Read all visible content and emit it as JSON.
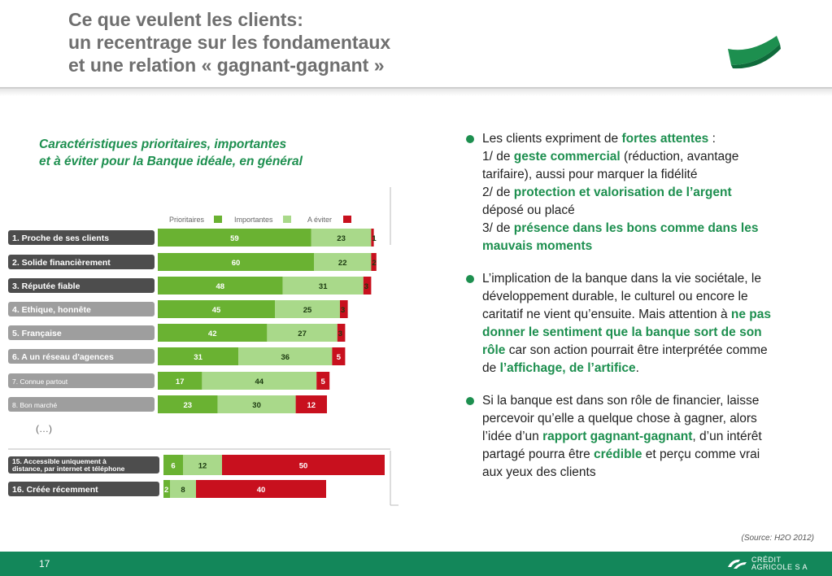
{
  "header": {
    "title_lines": [
      "Ce que veulent les clients:",
      "un recentrage sur les fondamentaux",
      "et une relation « gagnant-gagnant »"
    ]
  },
  "subtitle_lines": [
    "Caractéristiques prioritaires, importantes",
    "et à éviter pour la Banque idéale, en général"
  ],
  "colors": {
    "prioritaires": "#6ab232",
    "importantes": "#a9d98a",
    "a_eviter": "#c8101e",
    "brand_green": "#1d8f4f",
    "footer_green": "#13875a"
  },
  "chart_data": {
    "type": "bar",
    "stacked": true,
    "orientation": "horizontal",
    "legend": [
      "Prioritaires",
      "Importantes",
      "A éviter"
    ],
    "legend_position": "top",
    "categories": [
      "1. Proche de ses clients",
      "2. Solide financièrement",
      "3. Réputée fiable",
      "4. Ethique, honnête",
      "5. Française",
      "6. A un réseau d'agences",
      "7. Connue partout",
      "8. Bon marché",
      "15. Accessible uniquement à distance, par internet et téléphone",
      "16. Créée récemment"
    ],
    "category_lines": [
      [
        "1. Proche de ses clients"
      ],
      [
        "2. Solide financièrement"
      ],
      [
        "3. Réputée fiable"
      ],
      [
        "4. Ethique, honnête"
      ],
      [
        "5. Française"
      ],
      [
        "6. A un réseau d'agences"
      ],
      [
        "7. Connue partout"
      ],
      [
        "8. Bon marché"
      ],
      [
        "15. Accessible uniquement à",
        "distance, par internet et téléphone"
      ],
      [
        "16. Créée récemment"
      ]
    ],
    "series": [
      {
        "name": "Prioritaires",
        "values": [
          59,
          60,
          48,
          45,
          42,
          31,
          17,
          23,
          6,
          2
        ]
      },
      {
        "name": "Importantes",
        "values": [
          23,
          22,
          31,
          25,
          27,
          36,
          44,
          30,
          12,
          8
        ]
      },
      {
        "name": "A éviter",
        "values": [
          1,
          2,
          3,
          3,
          3,
          5,
          5,
          12,
          50,
          40
        ]
      }
    ],
    "gap_label": "(…)"
  },
  "bullets": [
    {
      "lines": [
        [
          {
            "t": "Les clients expriment de "
          },
          {
            "t": "fortes attentes",
            "h": true
          },
          {
            "t": " :"
          }
        ],
        [
          {
            "t": "1/ de "
          },
          {
            "t": "geste commercial",
            "h": true
          },
          {
            "t": " (réduction, avantage"
          }
        ],
        [
          {
            "t": "tarifaire), aussi pour marquer la fidélité"
          }
        ],
        [
          {
            "t": "2/ de "
          },
          {
            "t": "protection et valorisation de l’argent",
            "h": true
          }
        ],
        [
          {
            "t": "déposé ou placé"
          }
        ],
        [
          {
            "t": "3/ de "
          },
          {
            "t": "présence dans les bons comme dans les",
            "h": true
          }
        ],
        [
          {
            "t": "mauvais moments",
            "h": true
          }
        ]
      ]
    },
    {
      "lines": [
        [
          {
            "t": "L’implication de la banque dans la vie sociétale, le"
          }
        ],
        [
          {
            "t": "développement durable, le culturel ou encore le"
          }
        ],
        [
          {
            "t": "caritatif ne vient qu’ensuite. Mais attention à "
          },
          {
            "t": "ne pas",
            "h": true
          }
        ],
        [
          {
            "t": "donner le sentiment que la banque sort de son",
            "h": true
          }
        ],
        [
          {
            "t": "rôle",
            "h": true
          },
          {
            "t": " car son action pourrait être interprétée comme"
          }
        ],
        [
          {
            "t": "de "
          },
          {
            "t": "l’affichage, de l’artifice",
            "h": true
          },
          {
            "t": "."
          }
        ]
      ]
    },
    {
      "lines": [
        [
          {
            "t": "Si la banque est dans son rôle de financier, laisse"
          }
        ],
        [
          {
            "t": "percevoir qu’elle a quelque chose à gagner, alors"
          }
        ],
        [
          {
            "t": "l’idée d’un "
          },
          {
            "t": "rapport gagnant-gagnant",
            "h": true
          },
          {
            "t": ", d’un intérêt"
          }
        ],
        [
          {
            "t": "partagé pourra être "
          },
          {
            "t": "crédible",
            "h": true
          },
          {
            "t": " et perçu comme vrai"
          }
        ],
        [
          {
            "t": "aux yeux des clients"
          }
        ]
      ]
    }
  ],
  "source": "(Source: H2O 2012)",
  "footer": {
    "page_number": "17",
    "brand_lines": [
      "CRÉDIT",
      "AGRICOLE S A"
    ]
  }
}
